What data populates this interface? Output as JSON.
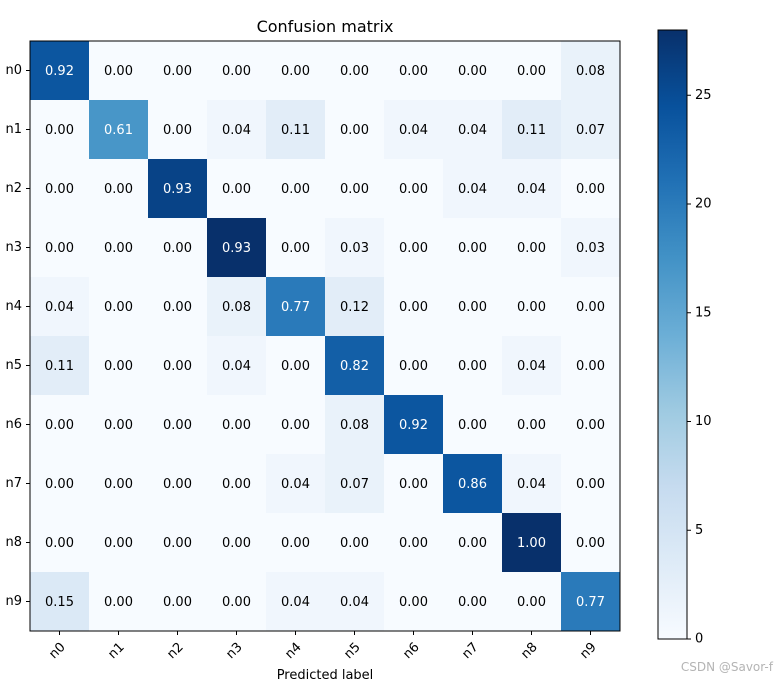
{
  "chart_data": {
    "type": "heatmap",
    "title": "Confusion matrix",
    "xlabel": "Predicted label",
    "ylabel": "",
    "x_categories": [
      "n0",
      "n1",
      "n2",
      "n3",
      "n4",
      "n5",
      "n6",
      "n7",
      "n8",
      "n9"
    ],
    "y_categories": [
      "n0",
      "n1",
      "n2",
      "n3",
      "n4",
      "n5",
      "n6",
      "n7",
      "n8",
      "n9"
    ],
    "values": [
      [
        "0.92",
        "0.00",
        "0.00",
        "0.00",
        "0.00",
        "0.00",
        "0.00",
        "0.00",
        "0.00",
        "0.08"
      ],
      [
        "0.00",
        "0.61",
        "0.00",
        "0.04",
        "0.11",
        "0.00",
        "0.04",
        "0.04",
        "0.11",
        "0.07"
      ],
      [
        "0.00",
        "0.00",
        "0.93",
        "0.00",
        "0.00",
        "0.00",
        "0.00",
        "0.04",
        "0.04",
        "0.00"
      ],
      [
        "0.00",
        "0.00",
        "0.00",
        "0.93",
        "0.00",
        "0.03",
        "0.00",
        "0.00",
        "0.00",
        "0.03"
      ],
      [
        "0.04",
        "0.00",
        "0.00",
        "0.08",
        "0.77",
        "0.12",
        "0.00",
        "0.00",
        "0.00",
        "0.00"
      ],
      [
        "0.11",
        "0.00",
        "0.00",
        "0.04",
        "0.00",
        "0.82",
        "0.00",
        "0.00",
        "0.04",
        "0.00"
      ],
      [
        "0.00",
        "0.00",
        "0.00",
        "0.00",
        "0.00",
        "0.08",
        "0.92",
        "0.00",
        "0.00",
        "0.00"
      ],
      [
        "0.00",
        "0.00",
        "0.00",
        "0.00",
        "0.04",
        "0.07",
        "0.00",
        "0.86",
        "0.04",
        "0.00"
      ],
      [
        "0.00",
        "0.00",
        "0.00",
        "0.00",
        "0.00",
        "0.00",
        "0.00",
        "0.00",
        "1.00",
        "0.00"
      ],
      [
        "0.15",
        "0.00",
        "0.00",
        "0.00",
        "0.04",
        "0.04",
        "0.00",
        "0.00",
        "0.00",
        "0.77"
      ]
    ],
    "counts": [
      [
        24,
        0,
        0,
        0,
        0,
        0,
        0,
        0,
        0,
        2
      ],
      [
        0,
        17,
        0,
        1,
        3,
        0,
        1,
        1,
        3,
        2
      ],
      [
        0,
        0,
        26,
        0,
        0,
        0,
        0,
        1,
        1,
        0
      ],
      [
        0,
        0,
        0,
        28,
        0,
        1,
        0,
        0,
        0,
        1
      ],
      [
        1,
        0,
        0,
        2,
        20,
        3,
        0,
        0,
        0,
        0
      ],
      [
        3,
        0,
        0,
        1,
        0,
        23,
        0,
        0,
        1,
        0
      ],
      [
        0,
        0,
        0,
        0,
        0,
        2,
        24,
        0,
        0,
        0
      ],
      [
        0,
        0,
        0,
        0,
        1,
        2,
        0,
        24,
        1,
        0
      ],
      [
        0,
        0,
        0,
        0,
        0,
        0,
        0,
        0,
        28,
        0
      ],
      [
        4,
        0,
        0,
        0,
        1,
        1,
        0,
        0,
        0,
        20
      ]
    ],
    "colorbar": {
      "range": [
        0,
        28
      ],
      "ticks": [
        "0",
        "5",
        "10",
        "15",
        "20",
        "25"
      ],
      "colormap": "Blues"
    },
    "text_threshold": 14,
    "colors": {
      "text_dark": "#000000",
      "text_light": "#ffffff"
    }
  },
  "watermark": "CSDN @Savor-f"
}
